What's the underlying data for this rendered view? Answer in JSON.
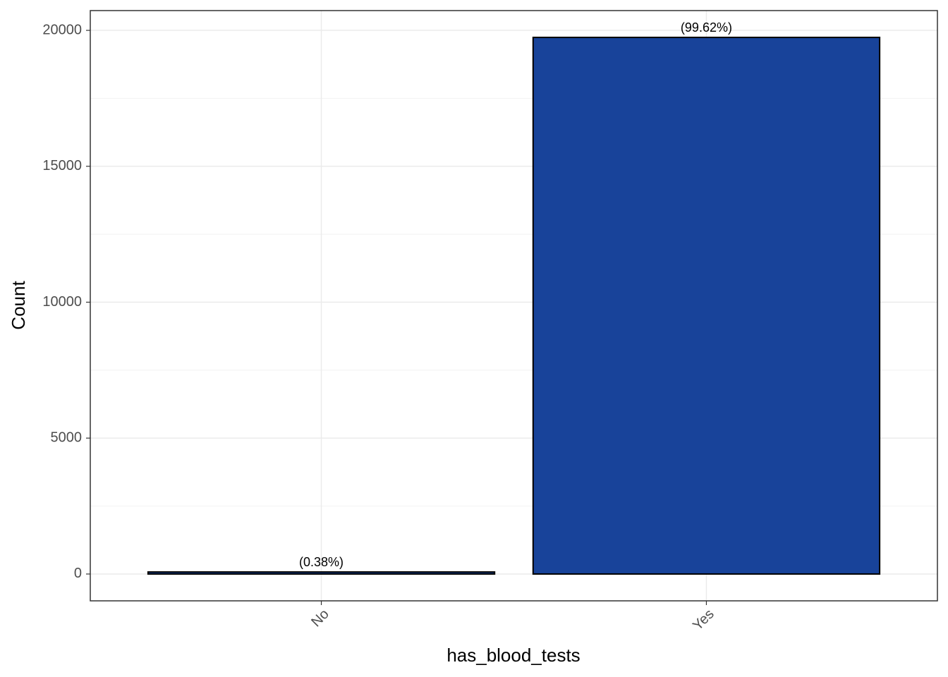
{
  "chart_data": {
    "type": "bar",
    "x_label": "has_blood_tests",
    "y_label": "Count",
    "categories": [
      "No",
      "Yes"
    ],
    "values": [
      75,
      19741
    ],
    "annotations": [
      "(0.38%)",
      "(99.62%)"
    ],
    "color": "#18439a",
    "ylim": [
      -987,
      20728
    ],
    "yticks": [
      0,
      5000,
      10000,
      15000,
      20000
    ],
    "grid": true
  }
}
